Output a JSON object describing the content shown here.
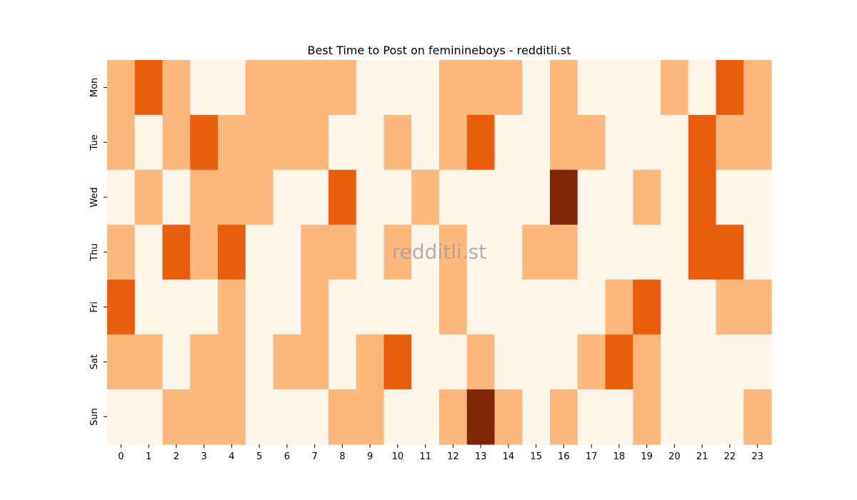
{
  "chart_data": {
    "type": "heatmap",
    "title": "Best Time to Post on feminineboys - redditli.st",
    "watermark": "redditli.st",
    "x_categories": [
      "0",
      "1",
      "2",
      "3",
      "4",
      "5",
      "6",
      "7",
      "8",
      "9",
      "10",
      "11",
      "12",
      "13",
      "14",
      "15",
      "16",
      "17",
      "18",
      "19",
      "20",
      "21",
      "22",
      "23"
    ],
    "y_categories": [
      "Mon",
      "Tue",
      "Wed",
      "Thu",
      "Fri",
      "Sat",
      "Sun"
    ],
    "xlabel": "",
    "ylabel": "",
    "colormap": "Oranges",
    "level_colors": [
      "#fff5eb",
      "#fdb97d",
      "#e95e0d",
      "#7f2704"
    ],
    "values": [
      [
        1,
        2,
        1,
        0,
        0,
        1,
        1,
        1,
        1,
        0,
        0,
        0,
        1,
        1,
        1,
        0,
        1,
        0,
        0,
        0,
        1,
        0,
        2,
        1
      ],
      [
        1,
        0,
        1,
        2,
        1,
        1,
        1,
        1,
        0,
        0,
        1,
        0,
        1,
        2,
        0,
        0,
        1,
        1,
        0,
        0,
        0,
        2,
        1,
        1
      ],
      [
        0,
        1,
        0,
        1,
        1,
        1,
        0,
        0,
        2,
        0,
        0,
        1,
        0,
        0,
        0,
        0,
        3,
        0,
        0,
        1,
        0,
        2,
        0,
        0
      ],
      [
        1,
        0,
        2,
        1,
        2,
        0,
        0,
        1,
        1,
        0,
        1,
        0,
        1,
        0,
        0,
        1,
        1,
        0,
        0,
        0,
        0,
        2,
        2,
        0
      ],
      [
        2,
        0,
        0,
        0,
        1,
        0,
        0,
        1,
        0,
        0,
        0,
        0,
        1,
        0,
        0,
        0,
        0,
        0,
        1,
        2,
        0,
        0,
        1,
        1
      ],
      [
        1,
        1,
        0,
        1,
        1,
        0,
        1,
        1,
        0,
        1,
        2,
        0,
        0,
        1,
        0,
        0,
        0,
        1,
        2,
        1,
        0,
        0,
        0,
        0
      ],
      [
        0,
        0,
        1,
        1,
        1,
        0,
        0,
        0,
        1,
        1,
        0,
        0,
        1,
        3,
        1,
        0,
        1,
        0,
        0,
        1,
        0,
        0,
        0,
        1
      ]
    ]
  }
}
